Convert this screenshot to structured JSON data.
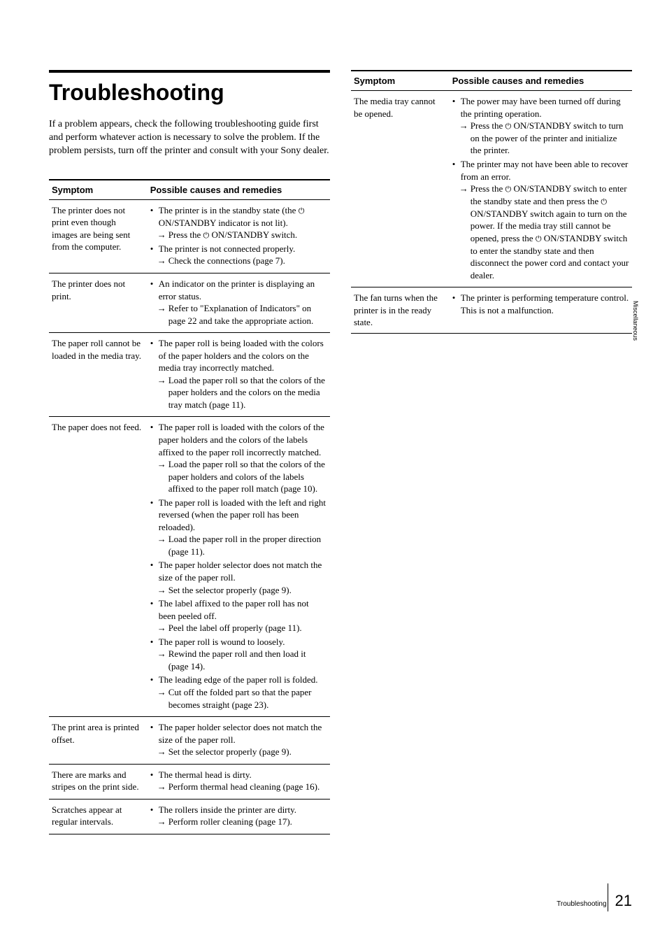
{
  "heading": "Troubleshooting",
  "intro": "If a problem appears, check the following troubleshooting guide first and perform whatever action is necessary to solve the problem. If the problem persists, turn off the printer and consult with your Sony dealer.",
  "table_headers": {
    "symptom": "Symptom",
    "causes": "Possible causes and remedies"
  },
  "left_rows": [
    {
      "symptom": "The printer does not print even though images are being sent from the computer.",
      "causes_html": "<ul class='causes'><li>The printer is in the standby state (the <span class='power-icon'>⏻</span> ON/STANDBY indicator is not lit).<div class='sub'> Press the <span class='power-icon'>⏻</span> ON/STANDBY switch.</div></li><li>The printer is not connected properly.<div class='sub'> Check the connections (page 7).</div></li></ul>"
    },
    {
      "symptom": "The printer does not print.",
      "causes_html": "<ul class='causes'><li>An indicator on the printer is displaying an error status.<div class='sub'>Refer to \"Explanation of Indicators\" on page 22 and take the appropriate action.</div></li></ul>"
    },
    {
      "symptom": "The paper roll cannot be loaded in the media tray.",
      "causes_html": "<ul class='causes'><li>The paper roll is being loaded with the colors of the paper holders and the colors on the media tray incorrectly matched.<div class='sub'> Load the paper roll so that the colors of the paper holders and the colors on the media tray match (page 11).</div></li></ul>"
    },
    {
      "symptom": "The paper does not feed.",
      "causes_html": "<ul class='causes'><li>The paper roll is loaded with the colors of the paper holders and the colors of the labels affixed to the paper roll incorrectly matched.<div class='sub'> Load the paper roll so that the colors of the paper holders and colors of the labels affixed to the paper roll match (page 10).</div></li><li>The paper roll is loaded with the left and right reversed (when the paper roll has been reloaded).<div class='sub'> Load the paper roll in the proper direction (page 11).</div></li><li>The paper holder selector does not match the size of the paper roll.<div class='sub'> Set the selector properly (page 9).</div></li><li>The label affixed to the paper roll has not been peeled off.<div class='sub'> Peel the label off properly (page 11).</div></li><li>The paper roll is wound to loosely.<div class='sub'> Rewind the paper roll and then load it (page 14).</div></li><li>The leading edge of the paper roll is folded.<div class='sub'> Cut off the folded part so that the paper becomes straight (page 23).</div></li></ul>"
    },
    {
      "symptom": "The print area is printed offset.",
      "causes_html": "<ul class='causes'><li>The paper holder selector does not match the size of the paper roll.<div class='sub'>Set the selector properly (page 9).</div></li></ul>"
    },
    {
      "symptom": "There are marks and stripes on the print side.",
      "causes_html": "<ul class='causes'><li>The thermal head is dirty.<div class='sub'> Perform thermal head cleaning (page 16).</div></li></ul>"
    },
    {
      "symptom": "Scratches appear at regular intervals.",
      "causes_html": "<ul class='causes'><li>The rollers inside the printer are dirty.<div class='sub'> Perform roller cleaning (page 17).</div></li></ul>"
    }
  ],
  "right_rows": [
    {
      "symptom": "The media tray cannot be opened.",
      "causes_html": "<ul class='causes'><li>The power may have been turned off during the printing operation.<div class='sub'>Press the <span class='power-icon'>⏻</span> ON/STANDBY switch to turn on the power of the printer and initialize the printer.</div></li><li>The printer may not have been able to recover from an error.<div class='sub'>Press the <span class='power-icon'>⏻</span> ON/STANDBY switch to enter the standby state and then press the <span class='power-icon'>⏻</span> ON/STANDBY switch again to turn on the power. If the media tray still cannot be opened, press the <span class='power-icon'>⏻</span> ON/STANDBY switch to enter the standby state and then disconnect the power cord and contact your dealer.</div></li></ul>"
    },
    {
      "symptom": "The fan turns when the printer is in the ready state.",
      "causes_html": "<ul class='causes'><li>The printer is performing temperature control. This is not a malfunction.</li></ul>"
    }
  ],
  "side_tab": "Miscellaneous",
  "footer_label": "Troubleshooting",
  "footer_page": "21"
}
